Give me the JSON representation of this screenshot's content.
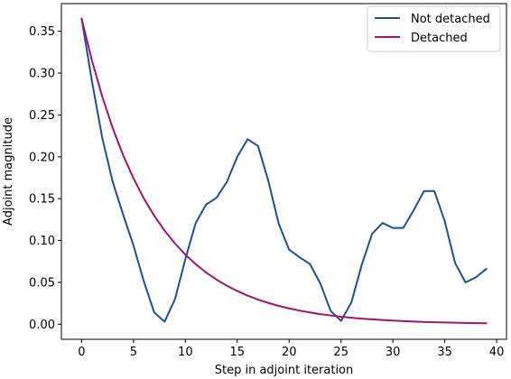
{
  "chart_data": {
    "type": "line",
    "title": "",
    "xlabel": "Step in adjoint iteration",
    "ylabel": "Adjoint magnitude",
    "xlim": [
      -1.95,
      40.95
    ],
    "ylim": [
      -0.018,
      0.383
    ],
    "xticks": [
      0,
      5,
      10,
      15,
      20,
      25,
      30,
      35,
      40
    ],
    "xtick_labels": [
      "0",
      "5",
      "10",
      "15",
      "20",
      "25",
      "30",
      "35",
      "40"
    ],
    "yticks": [
      0.0,
      0.05,
      0.1,
      0.15,
      0.2,
      0.25,
      0.3,
      0.35
    ],
    "ytick_labels": [
      "0.00",
      "0.05",
      "0.10",
      "0.15",
      "0.20",
      "0.25",
      "0.30",
      "0.35"
    ],
    "grid": false,
    "legend_position": "top-right",
    "series": [
      {
        "name": "Not detached",
        "color": "#1f4e9a",
        "x": [
          0,
          1,
          2,
          3,
          4,
          5,
          6,
          7,
          8,
          9,
          10,
          11,
          12,
          13,
          14,
          15,
          16,
          17,
          18,
          19,
          20,
          21,
          22,
          23,
          24,
          25,
          26,
          27,
          28,
          29,
          30,
          31,
          32,
          33,
          34,
          35,
          36,
          37,
          38,
          39
        ],
        "y": [
          0.365,
          0.29,
          0.222,
          0.17,
          0.131,
          0.094,
          0.051,
          0.014,
          0.003,
          0.03,
          0.078,
          0.121,
          0.143,
          0.151,
          0.17,
          0.2,
          0.221,
          0.213,
          0.171,
          0.12,
          0.089,
          0.08,
          0.072,
          0.049,
          0.016,
          0.004,
          0.026,
          0.071,
          0.108,
          0.121,
          0.115,
          0.115,
          0.136,
          0.159,
          0.159,
          0.123,
          0.073,
          0.05,
          0.056,
          0.066
        ]
      },
      {
        "name": "Detached",
        "color": "#a0146e",
        "x": [
          0,
          1,
          2,
          3,
          4,
          5,
          6,
          7,
          8,
          9,
          10,
          11,
          12,
          13,
          14,
          15,
          16,
          17,
          18,
          19,
          20,
          21,
          22,
          23,
          24,
          25,
          26,
          27,
          28,
          29,
          30,
          31,
          32,
          33,
          34,
          35,
          36,
          37,
          38,
          39
        ],
        "y": [
          0.365,
          0.3148,
          0.2715,
          0.2342,
          0.2019,
          0.1742,
          0.1502,
          0.1296,
          0.1117,
          0.0964,
          0.0831,
          0.0717,
          0.0618,
          0.0533,
          0.046,
          0.0397,
          0.0342,
          0.0295,
          0.0254,
          0.0219,
          0.0189,
          0.0163,
          0.0141,
          0.0121,
          0.0105,
          0.009,
          0.0078,
          0.0067,
          0.0058,
          0.005,
          0.0043,
          0.0037,
          0.0032,
          0.0028,
          0.0024,
          0.0021,
          0.0018,
          0.0015,
          0.0013,
          0.0011
        ]
      }
    ]
  }
}
